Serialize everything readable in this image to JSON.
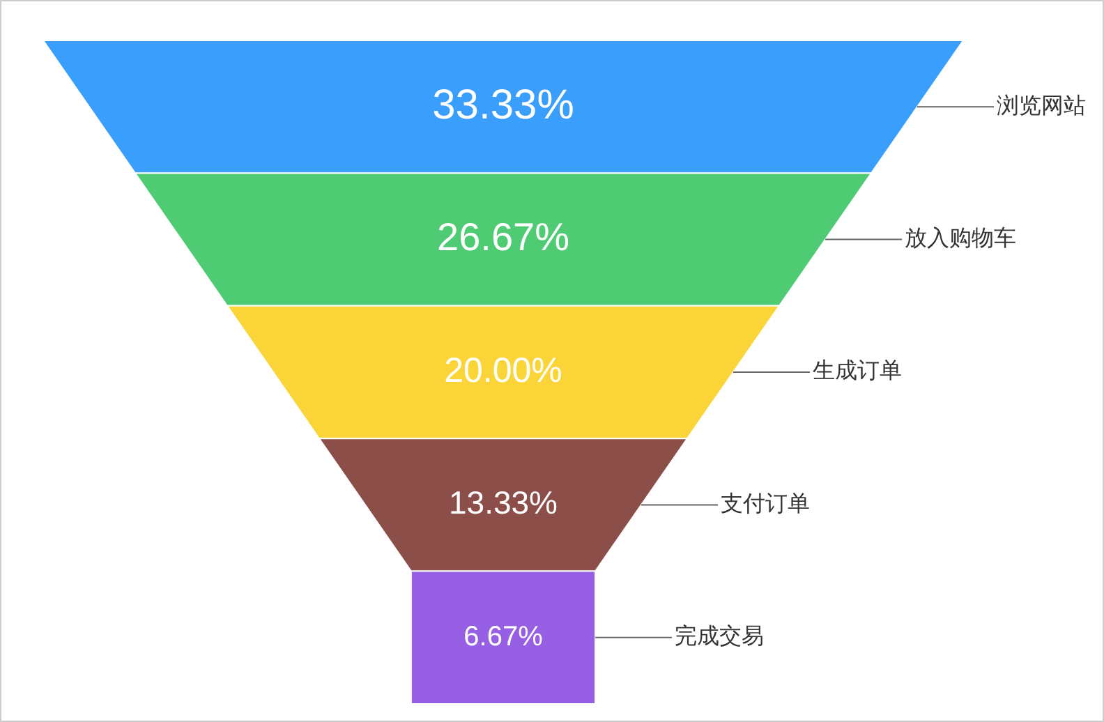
{
  "chart_data": {
    "type": "other",
    "categories": [
      "浏览网站",
      "放入购物车",
      "生成订单",
      "支付订单",
      "完成交易"
    ],
    "values": [
      33.33,
      26.67,
      20.0,
      13.33,
      6.67
    ],
    "colors": [
      "#3a9efd",
      "#4ecb73",
      "#fbd437",
      "#8b4e48",
      "#975fe4"
    ],
    "value_labels": [
      "33.33%",
      "26.67%",
      "20.00%",
      "13.33%",
      "6.67%"
    ]
  }
}
